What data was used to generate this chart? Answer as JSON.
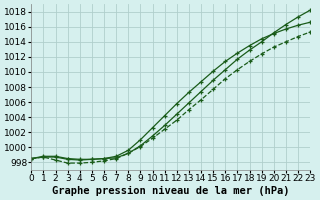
{
  "background_color": "#d6f0ee",
  "grid_color": "#b0cfcc",
  "line_color": "#1a5c1a",
  "title": "Graphe pression niveau de la mer (hPa)",
  "title_fontsize": 7.5,
  "tick_fontsize": 6.5,
  "xlim": [
    0,
    23
  ],
  "ylim": [
    997,
    1019
  ],
  "yticks": [
    998,
    1000,
    1002,
    1004,
    1006,
    1008,
    1010,
    1012,
    1014,
    1016,
    1018
  ],
  "xticks": [
    0,
    1,
    2,
    3,
    4,
    5,
    6,
    7,
    8,
    9,
    10,
    11,
    12,
    13,
    14,
    15,
    16,
    17,
    18,
    19,
    20,
    21,
    22,
    23
  ],
  "series1": [
    998.5,
    998.8,
    998.8,
    998.5,
    998.4,
    998.4,
    998.5,
    998.6,
    999.2,
    1000.2,
    1001.5,
    1002.9,
    1004.4,
    1005.9,
    1007.4,
    1008.9,
    1010.3,
    1011.7,
    1012.9,
    1014.0,
    1015.2,
    1016.3,
    1017.3,
    1018.2
  ],
  "series2": [
    998.5,
    998.7,
    998.3,
    997.9,
    997.9,
    998.0,
    998.2,
    998.5,
    999.2,
    1000.1,
    1001.2,
    1002.4,
    1003.6,
    1005.0,
    1006.3,
    1007.7,
    1009.1,
    1010.3,
    1011.4,
    1012.4,
    1013.3,
    1014.0,
    1014.7,
    1015.3
  ],
  "series3": [
    998.5,
    998.7,
    998.7,
    998.4,
    998.3,
    998.4,
    998.5,
    998.8,
    999.6,
    1001.0,
    1002.6,
    1004.2,
    1005.8,
    1007.3,
    1008.7,
    1010.1,
    1011.4,
    1012.5,
    1013.5,
    1014.4,
    1015.1,
    1015.7,
    1016.2,
    1016.6
  ]
}
